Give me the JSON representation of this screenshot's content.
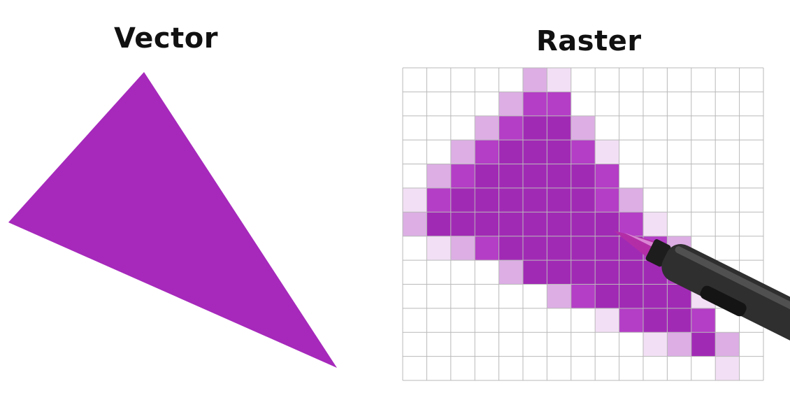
{
  "vector_panel": {
    "title": "Vector",
    "fill_color": "#a629bb"
  },
  "raster_panel": {
    "title": "Raster",
    "grid": {
      "columns": 15,
      "rows": 13,
      "line_color": "#b9b9b9",
      "fill_levels": {
        "1": "#f2dff5",
        "2": "#dcaee4",
        "3": "#b43ec6",
        "4": "#a12ab5"
      },
      "cells": [
        [
          0,
          0,
          0,
          0,
          0,
          2,
          1,
          0,
          0,
          0,
          0,
          0,
          0,
          0,
          0
        ],
        [
          0,
          0,
          0,
          0,
          2,
          3,
          3,
          0,
          0,
          0,
          0,
          0,
          0,
          0,
          0
        ],
        [
          0,
          0,
          0,
          2,
          3,
          4,
          4,
          2,
          0,
          0,
          0,
          0,
          0,
          0,
          0
        ],
        [
          0,
          0,
          2,
          3,
          4,
          4,
          4,
          3,
          1,
          0,
          0,
          0,
          0,
          0,
          0
        ],
        [
          0,
          2,
          3,
          4,
          4,
          4,
          4,
          4,
          3,
          0,
          0,
          0,
          0,
          0,
          0
        ],
        [
          1,
          3,
          4,
          4,
          4,
          4,
          4,
          4,
          3,
          2,
          0,
          0,
          0,
          0,
          0
        ],
        [
          2,
          4,
          4,
          4,
          4,
          4,
          4,
          4,
          4,
          3,
          1,
          0,
          0,
          0,
          0
        ],
        [
          0,
          1,
          2,
          3,
          4,
          4,
          4,
          4,
          4,
          4,
          3,
          2,
          0,
          0,
          0
        ],
        [
          0,
          0,
          0,
          0,
          2,
          4,
          4,
          4,
          4,
          4,
          4,
          3,
          0,
          0,
          0
        ],
        [
          0,
          0,
          0,
          0,
          0,
          0,
          2,
          3,
          4,
          4,
          4,
          4,
          1,
          0,
          0
        ],
        [
          0,
          0,
          0,
          0,
          0,
          0,
          0,
          0,
          1,
          3,
          4,
          4,
          3,
          0,
          0
        ],
        [
          0,
          0,
          0,
          0,
          0,
          0,
          0,
          0,
          0,
          0,
          1,
          2,
          4,
          2,
          0
        ],
        [
          0,
          0,
          0,
          0,
          0,
          0,
          0,
          0,
          0,
          0,
          0,
          0,
          0,
          1,
          0
        ]
      ]
    },
    "pen": {
      "body_color": "#2f2f2f",
      "tip_color": "#b32ea6",
      "icon": "stylus-pen-icon"
    }
  }
}
